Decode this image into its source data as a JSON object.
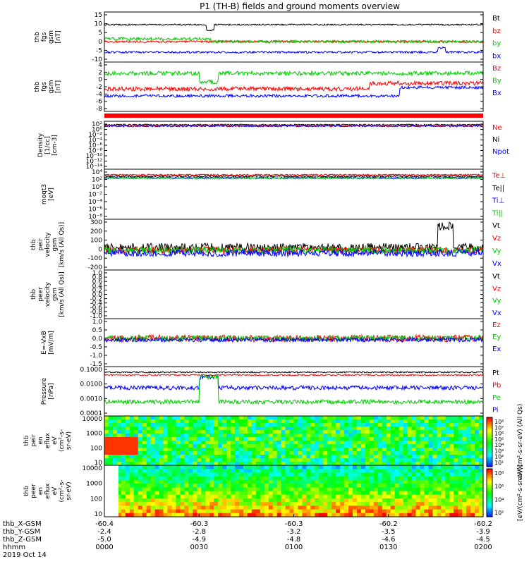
{
  "title": "P1 (TH-B) fields and ground moments overview",
  "colors": {
    "black": "#000000",
    "red": "#ff0000",
    "green": "#00cc00",
    "blue": "#0000ff"
  },
  "panels": [
    {
      "id": "fgs",
      "ylabel": [
        "thb",
        "fgs",
        "gsm",
        "[nT]"
      ],
      "scale": "linear",
      "ticks": [
        "15",
        "10",
        "5",
        "0",
        "-5",
        "-10"
      ],
      "legend": [
        {
          "label": "Bt",
          "color": "#000000"
        },
        {
          "label": "bz",
          "color": "#ff0000"
        },
        {
          "label": "by",
          "color": "#00cc00"
        },
        {
          "label": "bx",
          "color": "#0000ff"
        }
      ]
    },
    {
      "id": "fgs_dsl",
      "ylabel": [
        "thb",
        "fgs",
        "gsm",
        "[nT]"
      ],
      "scale": "linear",
      "ticks": [
        "4",
        "2",
        "0",
        "-2",
        "-4",
        "-6",
        "-8"
      ],
      "legend": [
        {
          "label": "Bz",
          "color": "#ff0000"
        },
        {
          "label": "By",
          "color": "#00cc00"
        },
        {
          "label": "Bx",
          "color": "#0000ff"
        }
      ]
    },
    {
      "id": "density",
      "ylabel": [
        "Density",
        "[1/cc]",
        "[cm-3]"
      ],
      "scale": "log",
      "ticks": [
        "10²",
        "10⁰",
        "10⁻²",
        "10⁻⁴",
        "10⁻⁶",
        "10⁻⁸",
        "10⁻¹⁰",
        "10⁻¹²",
        "10⁻¹⁴"
      ],
      "legend": [
        {
          "label": "Ne",
          "color": "#ff0000"
        },
        {
          "label": "Ni",
          "color": "#000000"
        },
        {
          "label": "Npot",
          "color": "#0000ff"
        }
      ]
    },
    {
      "id": "temp",
      "ylabel": [
        "moqt3",
        "[eV]"
      ],
      "scale": "log",
      "ticks": [
        "10⁴",
        "10²",
        "10⁰",
        "10⁻²",
        "10⁻⁴",
        "10⁻⁶",
        "10⁻⁸"
      ],
      "legend": [
        {
          "label": "Te⊥",
          "color": "#ff0000"
        },
        {
          "label": "Te||",
          "color": "#000000"
        },
        {
          "label": "Ti⊥",
          "color": "#0000ff"
        },
        {
          "label": "Ti||",
          "color": "#00cc00"
        }
      ]
    },
    {
      "id": "peir_vel",
      "ylabel": [
        "thb",
        "peir",
        "velocity",
        "gsm",
        "[km/s (All Qs)]"
      ],
      "scale": "linear",
      "ticks": [
        "300",
        "200",
        "100",
        "0",
        "-100",
        "-200"
      ],
      "legend": [
        {
          "label": "Vt",
          "color": "#000000"
        },
        {
          "label": "Vz",
          "color": "#ff0000"
        },
        {
          "label": "Vy",
          "color": "#00cc00"
        },
        {
          "label": "Vx",
          "color": "#0000ff"
        }
      ]
    },
    {
      "id": "peer_vel",
      "ylabel": [
        "thb",
        "peer",
        "velocity",
        "gsm",
        "[km/s (All Qs)]"
      ],
      "scale": "linear",
      "ticks": [
        "1.0",
        "0.8",
        "0.6",
        "0.4",
        "0.2",
        "0.0",
        "-0.2",
        "-0.4",
        "-0.6",
        "-0.8",
        "-1.0"
      ],
      "legend": [
        {
          "label": "Vt",
          "color": "#000000"
        },
        {
          "label": "Vz",
          "color": "#ff0000"
        },
        {
          "label": "Vy",
          "color": "#00cc00"
        },
        {
          "label": "Vx",
          "color": "#0000ff"
        }
      ]
    },
    {
      "id": "efield",
      "ylabel": [
        "E=-VxB",
        "[mV/m]"
      ],
      "scale": "linear",
      "ticks": [
        "1.0",
        "0.5",
        "0.0",
        "-0.5",
        "-1.0",
        "-1.5"
      ],
      "legend": [
        {
          "label": "Ez",
          "color": "#ff0000"
        },
        {
          "label": "Ey",
          "color": "#00cc00"
        },
        {
          "label": "Ex",
          "color": "#0000ff"
        }
      ]
    },
    {
      "id": "pressure",
      "ylabel": [
        "Pressure",
        "[nPa]"
      ],
      "scale": "log",
      "ticks": [
        "0.1000",
        "0.0100",
        "0.0010",
        "0.0001"
      ],
      "legend": [
        {
          "label": "Pt",
          "color": "#000000"
        },
        {
          "label": "Pb",
          "color": "#ff0000"
        },
        {
          "label": "Pe",
          "color": "#00cc00"
        },
        {
          "label": "Pi",
          "color": "#0000ff"
        }
      ]
    },
    {
      "id": "peir_eflux",
      "ylabel": [
        "thb",
        "peir",
        "en",
        "eflux",
        "eV",
        "(cm²-s-",
        "sr-eV)"
      ],
      "scale": "log",
      "ticks": [
        "10000",
        "1000",
        "100",
        "10"
      ],
      "legend": []
    },
    {
      "id": "peer_eflux",
      "ylabel": [
        "thb",
        "peer",
        "en",
        "eflux",
        "eV",
        "(cm²-s-",
        "sr-eV)"
      ],
      "scale": "log",
      "ticks": [
        "10000",
        "1000",
        "100",
        "10"
      ],
      "legend": []
    }
  ],
  "colorbar_top": {
    "ticks": [
      "10⁸",
      "10⁷",
      "10⁶",
      "10⁵",
      "10⁴",
      "10³",
      "10²",
      "10¹"
    ],
    "label": "eV/(cm²-s-sr-eV) (All Qs)"
  },
  "colorbar_bottom": {
    "ticks": [
      "10⁸",
      "10⁶",
      "10⁴",
      "10²"
    ],
    "label": "[eV/(cm²-s-sr-eV)]"
  },
  "xaxis": {
    "row_labels": [
      "thb_X-GSM",
      "thb_Y-GSM",
      "thb_Z-GSM",
      "hhmm",
      "2019 Oct 14"
    ],
    "columns": [
      {
        "x": "-60.4",
        "y": "-2.4",
        "z": "-5.0",
        "t": "0000"
      },
      {
        "x": "-60.3",
        "y": "-2.8",
        "z": "-4.9",
        "t": "0030"
      },
      {
        "x": "-60.3",
        "y": "-3.2",
        "z": "-4.8",
        "t": "0100"
      },
      {
        "x": "-60.2",
        "y": "-3.5",
        "z": "-4.6",
        "t": "0130"
      },
      {
        "x": "-60.2",
        "y": "-3.9",
        "z": "-4.5",
        "t": "0200"
      }
    ]
  }
}
